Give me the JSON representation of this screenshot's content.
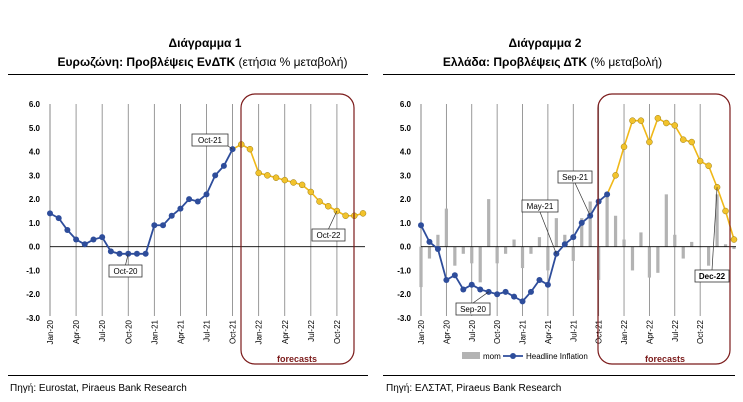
{
  "panel1": {
    "title": "Διάγραμμα 1",
    "subtitle_bold": "Ευρωζώνη: Προβλέψεις ΕνΔΤΚ",
    "subtitle_rest": " (ετήσια % μεταβολή)",
    "source": "Πηγή: Eurostat, Piraeus Bank Research"
  },
  "panel2": {
    "title": "Διάγραμμα 2",
    "subtitle_bold": "Ελλάδα: Προβλέψεις ΔΤΚ",
    "subtitle_rest": "  (% μεταβολή)",
    "source": "Πηγή: ΕΛΣΤΑΤ, Piraeus Bank Research"
  },
  "colors": {
    "actual_line": "#2e4d9b",
    "forecast_line": "#f0b818",
    "forecast_marker": "#f2c32c",
    "forecast_box": "#7b1a1a",
    "mom_bars": "#b3b3b3",
    "grid": "#808080"
  },
  "chart_data": [
    {
      "type": "line",
      "ylim": [
        -3.0,
        6.0
      ],
      "yticks": [
        "6.0",
        "5.0",
        "4.0",
        "3.0",
        "2.0",
        "1.0",
        "0.0",
        "-1.0",
        "-2.0",
        "-3.0"
      ],
      "x_tick_labels": [
        "Jan-20",
        "Apr-20",
        "Jul-20",
        "Oct-20",
        "Jan-21",
        "Apr-21",
        "Jul-21",
        "Oct-21",
        "Jan-22",
        "Apr-22",
        "Jul-22",
        "Oct-22"
      ],
      "x_tick_index": [
        0,
        3,
        6,
        9,
        12,
        15,
        18,
        21,
        24,
        27,
        30,
        33
      ],
      "grid": "vertical",
      "series": [
        {
          "role": "actual",
          "values": [
            1.4,
            1.2,
            0.7,
            0.3,
            0.1,
            0.3,
            0.4,
            -0.2,
            -0.3,
            -0.3,
            -0.3,
            -0.3,
            0.9,
            0.9,
            1.3,
            1.6,
            2.0,
            1.9,
            2.2,
            3.0,
            3.4,
            4.1
          ]
        },
        {
          "role": "forecast",
          "start_index": 22,
          "values": [
            4.3,
            4.1,
            3.1,
            3.0,
            2.9,
            2.8,
            2.7,
            2.6,
            2.3,
            1.9,
            1.7,
            1.5,
            1.3,
            1.3,
            1.4
          ]
        }
      ],
      "annotations": [
        {
          "text": "Oct-21",
          "index": 21
        },
        {
          "text": "Oct-20",
          "index": 9
        },
        {
          "text": "Oct-22",
          "index": 33
        }
      ],
      "forecast_label": "forecasts"
    },
    {
      "type": "line+bar",
      "ylim": [
        -3.0,
        6.0
      ],
      "yticks": [
        "6.0",
        "5.0",
        "4.0",
        "3.0",
        "2.0",
        "1.0",
        "0.0",
        "-1.0",
        "-2.0",
        "-3.0"
      ],
      "x_tick_labels": [
        "Jan-20",
        "Apr-20",
        "Jul-20",
        "Oct-20",
        "Jan-21",
        "Apr-21",
        "Jul-21",
        "Oct-21",
        "Jan-22",
        "Apr-22",
        "Jul-22",
        "Oct-22"
      ],
      "x_tick_index": [
        0,
        3,
        6,
        9,
        12,
        15,
        18,
        21,
        24,
        27,
        30,
        33
      ],
      "grid": "vertical",
      "legend": {
        "position": "bottom",
        "mom": "mom",
        "headline": "Headline Inflation"
      },
      "bars_mom": [
        -1.7,
        -0.5,
        0.5,
        1.6,
        -0.8,
        -0.3,
        -0.7,
        -1.5,
        2.0,
        -0.7,
        -0.3,
        0.3,
        -0.9,
        -0.3,
        0.4,
        -1.0,
        1.2,
        0.5,
        -0.6,
        1.2,
        1.9,
        -1.4,
        2.2,
        1.3,
        0.3,
        -1.0,
        0.6,
        -1.3,
        -1.1,
        2.2,
        0.5,
        -0.5,
        0.2,
        0.0,
        -0.8,
        2.2,
        0.1,
        -0.1
      ],
      "series": [
        {
          "role": "actual",
          "values": [
            0.9,
            0.2,
            -0.1,
            -1.4,
            -1.2,
            -1.8,
            -1.6,
            -1.8,
            -1.9,
            -2.0,
            -1.9,
            -2.1,
            -2.3,
            -1.9,
            -1.4,
            -1.6,
            -0.3,
            0.1,
            0.4,
            1.0,
            1.3,
            1.9,
            2.2
          ]
        },
        {
          "role": "forecast",
          "start_index": 23,
          "values": [
            3.0,
            4.2,
            5.3,
            5.3,
            4.4,
            5.4,
            5.2,
            5.1,
            4.5,
            4.4,
            3.6,
            3.4,
            2.5,
            1.5,
            0.3
          ]
        }
      ],
      "annotations": [
        {
          "text": "Sep-21",
          "index": 20
        },
        {
          "text": "May-21",
          "index": 16
        },
        {
          "text": "Sep-20",
          "index": 8
        },
        {
          "text": "Dec-22",
          "index": 35
        }
      ],
      "forecast_label": "forecasts"
    }
  ]
}
